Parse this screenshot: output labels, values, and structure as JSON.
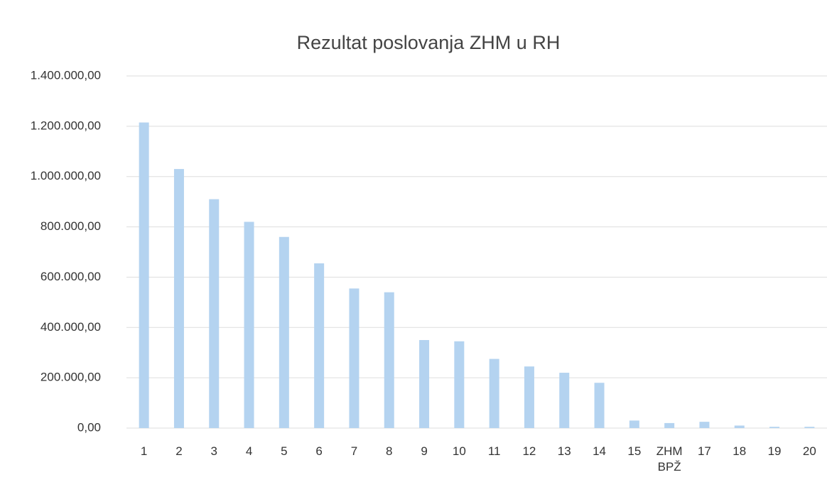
{
  "chart_data": {
    "type": "bar",
    "title": "Rezultat poslovanja ZHM u RH",
    "categories": [
      "1",
      "2",
      "3",
      "4",
      "5",
      "6",
      "7",
      "8",
      "9",
      "10",
      "11",
      "12",
      "13",
      "14",
      "15",
      "ZHM BPŽ",
      "17",
      "18",
      "19",
      "20"
    ],
    "values": [
      1215000,
      1030000,
      910000,
      820000,
      760000,
      655000,
      555000,
      540000,
      350000,
      345000,
      275000,
      245000,
      220000,
      180000,
      30000,
      20000,
      25000,
      10000,
      5000,
      5000
    ],
    "color": "#b4d3f0",
    "ylim": [
      0,
      1400000
    ],
    "yticks": [
      {
        "value": 0,
        "label": "0,00"
      },
      {
        "value": 200000,
        "label": "200.000,00"
      },
      {
        "value": 400000,
        "label": "400.000,00"
      },
      {
        "value": 600000,
        "label": "600.000,00"
      },
      {
        "value": 800000,
        "label": "800.000,00"
      },
      {
        "value": 1000000,
        "label": "1.000.000,00"
      },
      {
        "value": 1200000,
        "label": "1.200.000,00"
      },
      {
        "value": 1400000,
        "label": "1.400.000,00"
      }
    ],
    "grid": true
  }
}
